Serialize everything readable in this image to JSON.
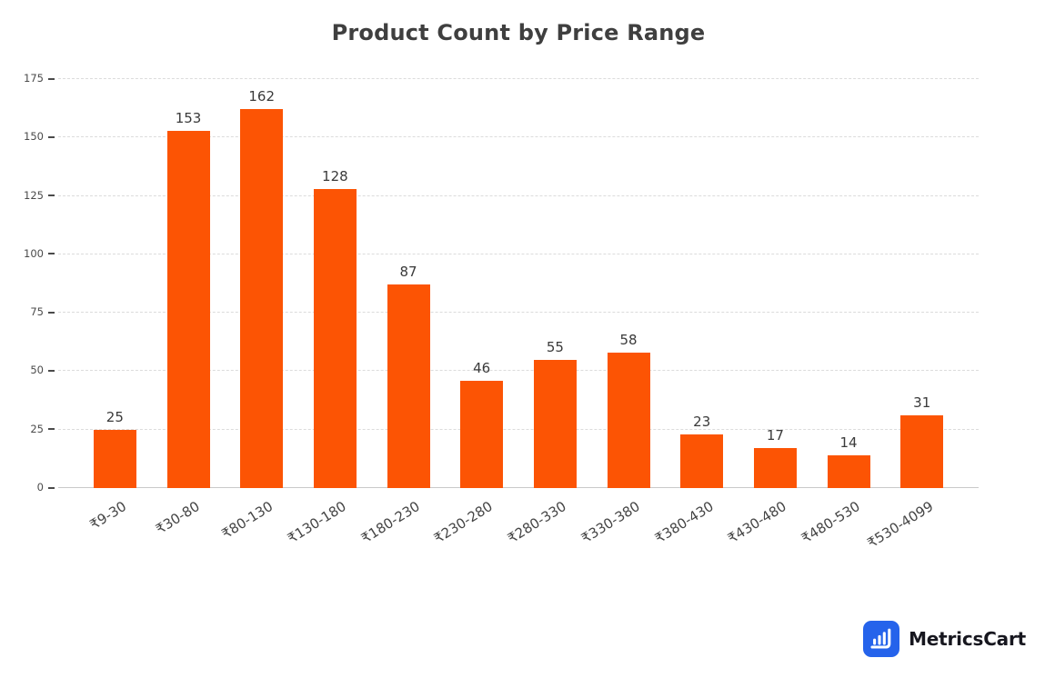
{
  "chart_data": {
    "type": "bar",
    "title": "Product Count by Price Range",
    "categories": [
      "₹9-30",
      "₹30-80",
      "₹80-130",
      "₹130-180",
      "₹180-230",
      "₹230-280",
      "₹280-330",
      "₹330-380",
      "₹380-430",
      "₹430-480",
      "₹480-530",
      "₹530-4099"
    ],
    "values": [
      25,
      153,
      162,
      128,
      87,
      46,
      55,
      58,
      23,
      17,
      14,
      31
    ],
    "xlabel": "",
    "ylabel": "",
    "ylim": [
      0,
      175
    ],
    "yticks": [
      0,
      25,
      50,
      75,
      100,
      125,
      150,
      175
    ],
    "grid": "horizontal-dashed",
    "legend": "none",
    "value_labels": "above-bars",
    "x_tick_rotation_deg": -32,
    "bar_color": "#fc5404",
    "gridline_color": "#dcdcdc",
    "axis_line_color": "#c9c9c9"
  },
  "branding": {
    "logo_text": "MetricsCart",
    "logo_color": "#2563eb"
  }
}
